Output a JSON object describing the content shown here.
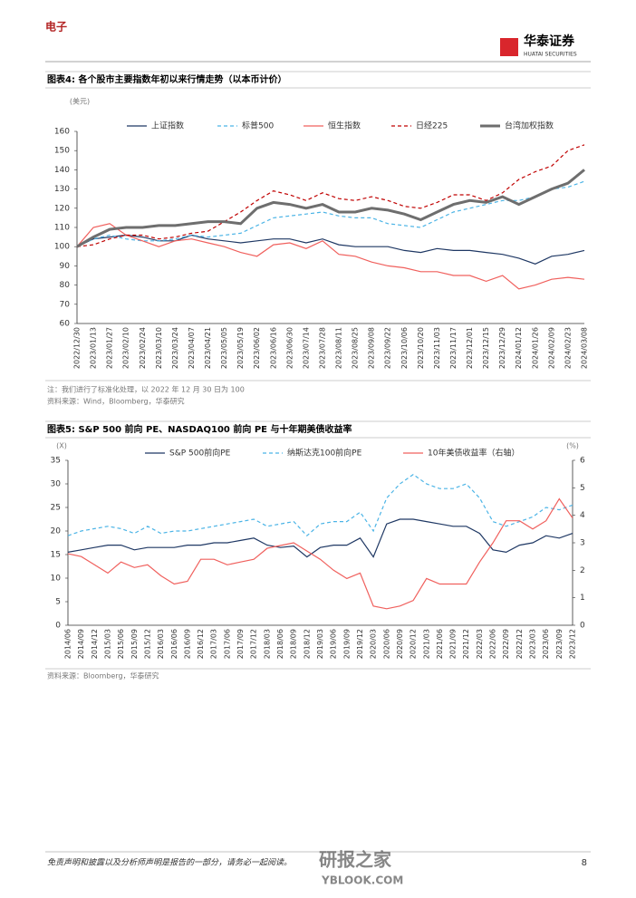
{
  "header": {
    "section": "电子",
    "logo": "华泰证券",
    "logo_en": "HUATAI SECURITIES"
  },
  "chart_data": [
    {
      "type": "line",
      "title": "图表4: 各个股市主要指数年初以来行情走势（以本币计价）",
      "y_unit": "(美元)",
      "categories": [
        "2022/12/30",
        "2023/01/13",
        "2023/01/27",
        "2023/02/10",
        "2023/02/24",
        "2023/03/10",
        "2023/03/24",
        "2023/04/07",
        "2023/04/21",
        "2023/05/05",
        "2023/05/19",
        "2023/06/02",
        "2023/06/16",
        "2023/06/30",
        "2023/07/14",
        "2023/07/28",
        "2023/08/11",
        "2023/08/25",
        "2023/09/08",
        "2023/09/22",
        "2023/10/06",
        "2023/10/20",
        "2023/11/03",
        "2023/11/17",
        "2023/12/01",
        "2023/12/15",
        "2023/12/29",
        "2024/01/12",
        "2024/01/26",
        "2024/02/09",
        "2024/02/23",
        "2024/03/08"
      ],
      "ylim": [
        60,
        160
      ],
      "yticks": [
        60,
        70,
        80,
        90,
        100,
        110,
        120,
        130,
        140,
        150,
        160
      ],
      "series": [
        {
          "name": "上证指数",
          "color": "#1f3864",
          "style": "solid",
          "values": [
            100,
            104,
            105,
            106,
            105,
            103,
            103,
            106,
            104,
            103,
            102,
            103,
            104,
            104,
            102,
            104,
            101,
            100,
            100,
            100,
            98,
            97,
            99,
            98,
            98,
            97,
            96,
            94,
            91,
            95,
            96,
            98
          ]
        },
        {
          "name": "标普500",
          "color": "#4bb4e6",
          "style": "dashed",
          "values": [
            100,
            104,
            106,
            104,
            103,
            103,
            104,
            106,
            105,
            106,
            107,
            111,
            115,
            116,
            117,
            118,
            116,
            115,
            115,
            112,
            111,
            110,
            114,
            118,
            120,
            122,
            124,
            124,
            126,
            130,
            131,
            134
          ]
        },
        {
          "name": "恒生指数",
          "color": "#f0605d",
          "style": "solid",
          "values": [
            100,
            110,
            112,
            106,
            103,
            100,
            103,
            104,
            102,
            100,
            97,
            95,
            101,
            102,
            99,
            103,
            96,
            95,
            92,
            90,
            89,
            87,
            87,
            85,
            85,
            82,
            85,
            78,
            80,
            83,
            84,
            83
          ]
        },
        {
          "name": "日经225",
          "color": "#c00000",
          "style": "dashed",
          "values": [
            100,
            101,
            104,
            106,
            106,
            104,
            105,
            107,
            108,
            113,
            118,
            124,
            129,
            127,
            124,
            128,
            125,
            124,
            126,
            124,
            121,
            120,
            123,
            127,
            127,
            124,
            128,
            135,
            139,
            142,
            150,
            153
          ]
        },
        {
          "name": "台湾加权指数",
          "color": "#6e6e6e",
          "style": "bold",
          "values": [
            100,
            105,
            109,
            110,
            110,
            111,
            111,
            112,
            113,
            113,
            112,
            120,
            123,
            122,
            120,
            122,
            118,
            118,
            120,
            119,
            117,
            114,
            118,
            122,
            124,
            123,
            126,
            122,
            126,
            130,
            133,
            140
          ]
        }
      ],
      "note": "注：我们进行了标准化处理，以 2022 年 12 月 30 日为 100",
      "source": "资料来源：Wind，Bloomberg，华泰研究"
    },
    {
      "type": "line",
      "title": "图表5: S&P 500 前向 PE、NASDAQ100 前向 PE 与十年期美债收益率",
      "y_unit": "(X)",
      "y2_unit": "(%)",
      "categories": [
        "2014/06",
        "2014/09",
        "2014/12",
        "2015/03",
        "2015/06",
        "2015/09",
        "2015/12",
        "2016/03",
        "2016/06",
        "2016/09",
        "2016/12",
        "2017/03",
        "2017/06",
        "2017/09",
        "2017/12",
        "2018/03",
        "2018/06",
        "2018/09",
        "2018/12",
        "2019/03",
        "2019/06",
        "2019/09",
        "2019/12",
        "2020/03",
        "2020/06",
        "2020/09",
        "2020/12",
        "2021/03",
        "2021/06",
        "2021/09",
        "2021/12",
        "2022/03",
        "2022/06",
        "2022/09",
        "2022/12",
        "2023/03",
        "2023/06",
        "2023/09",
        "2023/12"
      ],
      "ylim": [
        0,
        35
      ],
      "yticks": [
        0,
        5,
        10,
        15,
        20,
        25,
        30,
        35
      ],
      "y2lim": [
        0,
        6
      ],
      "y2ticks": [
        0,
        1,
        2,
        3,
        4,
        5,
        6
      ],
      "series": [
        {
          "name": "S&P 500前向PE",
          "color": "#1f3864",
          "style": "solid",
          "values": [
            15.5,
            16,
            16.5,
            17,
            17,
            16,
            16.5,
            16.5,
            16.5,
            17,
            17,
            17.5,
            17.5,
            18,
            18.5,
            17,
            16.5,
            16.8,
            14.5,
            16.5,
            17,
            17,
            18.5,
            14.5,
            21.5,
            22.5,
            22.5,
            22,
            21.5,
            21,
            21,
            19.5,
            16,
            15.5,
            17,
            17.5,
            19,
            18.5,
            19.5
          ]
        },
        {
          "name": "纳斯达克100前向PE",
          "color": "#4bb4e6",
          "style": "dashed",
          "values": [
            19,
            20,
            20.5,
            21,
            20.5,
            19.5,
            21,
            19.5,
            20,
            20,
            20.5,
            21,
            21.5,
            22,
            22.5,
            21,
            21.5,
            22,
            19,
            21.5,
            22,
            22,
            24,
            20,
            27,
            30,
            32,
            30,
            29,
            29,
            30,
            27,
            22,
            21,
            22,
            23,
            25,
            24.5,
            25.5
          ]
        },
        {
          "name": "10年美债收益率（右轴）",
          "color": "#f0605d",
          "style": "solid",
          "axis": "y2",
          "values": [
            2.6,
            2.5,
            2.2,
            1.9,
            2.3,
            2.1,
            2.2,
            1.8,
            1.5,
            1.6,
            2.4,
            2.4,
            2.2,
            2.3,
            2.4,
            2.8,
            2.9,
            3.0,
            2.7,
            2.4,
            2.0,
            1.7,
            1.9,
            0.7,
            0.6,
            0.7,
            0.9,
            1.7,
            1.5,
            1.5,
            1.5,
            2.3,
            3.0,
            3.8,
            3.8,
            3.5,
            3.8,
            4.6,
            3.9
          ]
        }
      ],
      "source": "资料来源：Bloomberg，华泰研究"
    }
  ],
  "footer": {
    "disclaimer": "免责声明和披露以及分析师声明是报告的一部分，请务必一起阅读。",
    "page": "8",
    "watermark": "研报之家",
    "watermark_url": "YBLOOK.COM"
  }
}
